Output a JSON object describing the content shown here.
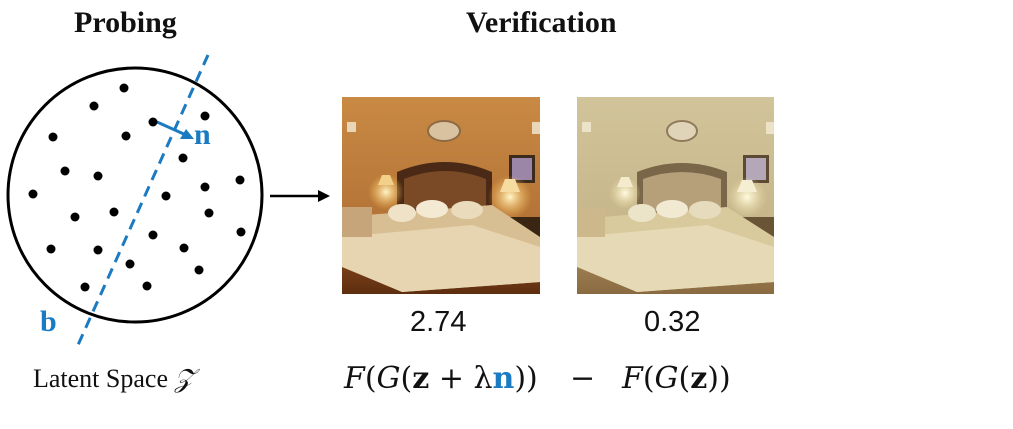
{
  "headings": {
    "probing": "Probing",
    "verification": "Verification"
  },
  "latent": {
    "space_label": "Latent Space",
    "space_symbol": "𝒵",
    "direction_label": "n",
    "boundary_label": "b"
  },
  "scores": {
    "left": "2.74",
    "right": "0.32"
  },
  "formula": {
    "left": {
      "F": "F",
      "G": "G",
      "z": "z",
      "plus": "+",
      "lambda": "λ",
      "n": "n"
    },
    "minus": "−",
    "right": {
      "F": "F",
      "G": "G",
      "z": "z"
    }
  },
  "colors": {
    "accent": "#1a7ac2",
    "ink": "#000000"
  },
  "icons": [
    "arrow-right-icon",
    "direction-arrow-icon"
  ]
}
